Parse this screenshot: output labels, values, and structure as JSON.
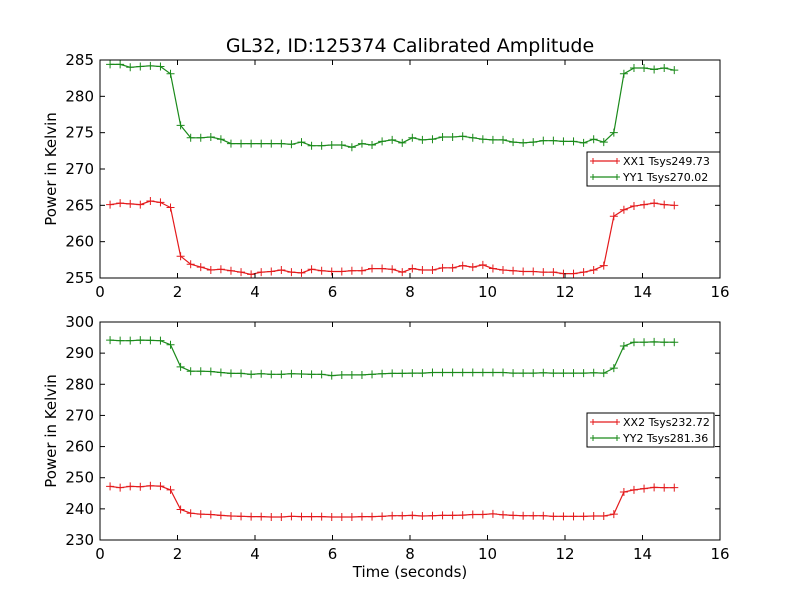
{
  "title": "GL32, ID:125374 Calibrated Amplitude",
  "colors": {
    "red": "#e41a1c",
    "green": "#1a8a1a",
    "axis": "#000000"
  },
  "chart_data": [
    {
      "type": "line",
      "title": "GL32, ID:125374 Calibrated Amplitude",
      "xlabel": "",
      "ylabel": "Power in Kelvin",
      "xlim": [
        0,
        16
      ],
      "ylim": [
        255,
        285
      ],
      "xticks": [
        0,
        2,
        4,
        6,
        8,
        10,
        12,
        14,
        16
      ],
      "yticks": [
        255,
        260,
        265,
        270,
        275,
        280,
        285
      ],
      "grid": false,
      "legend": "center-right",
      "x": [
        0.26,
        0.52,
        0.78,
        1.04,
        1.3,
        1.56,
        1.82,
        2.08,
        2.34,
        2.6,
        2.86,
        3.12,
        3.38,
        3.64,
        3.9,
        4.16,
        4.42,
        4.68,
        4.94,
        5.2,
        5.46,
        5.72,
        5.98,
        6.24,
        6.5,
        6.76,
        7.02,
        7.28,
        7.54,
        7.8,
        8.06,
        8.32,
        8.58,
        8.84,
        9.1,
        9.36,
        9.62,
        9.88,
        10.14,
        10.4,
        10.66,
        10.92,
        11.18,
        11.44,
        11.7,
        11.96,
        12.22,
        12.48,
        12.74,
        13.0,
        13.26,
        13.52,
        13.78,
        14.04,
        14.3,
        14.56,
        14.82
      ],
      "series": [
        {
          "name": "XX1 Tsys249.73",
          "color": "#e41a1c",
          "values": [
            265.1,
            265.3,
            265.2,
            265.1,
            265.6,
            265.4,
            264.7,
            258.0,
            256.9,
            256.5,
            256.1,
            256.2,
            256.0,
            255.8,
            255.5,
            255.8,
            255.9,
            256.1,
            255.8,
            255.7,
            256.2,
            256.0,
            255.9,
            255.9,
            256.0,
            256.0,
            256.3,
            256.3,
            256.2,
            255.8,
            256.3,
            256.1,
            256.1,
            256.4,
            256.4,
            256.7,
            256.5,
            256.8,
            256.3,
            256.1,
            256.0,
            255.9,
            255.9,
            255.8,
            255.8,
            255.6,
            255.6,
            255.8,
            256.1,
            256.7,
            263.5,
            264.4,
            264.9,
            265.1,
            265.3,
            265.1,
            265.0
          ]
        },
        {
          "name": "YY1 Tsys270.02",
          "color": "#1a8a1a",
          "values": [
            284.4,
            284.4,
            284.0,
            284.1,
            284.2,
            284.1,
            283.1,
            276.0,
            274.3,
            274.3,
            274.4,
            274.1,
            273.5,
            273.5,
            273.5,
            273.5,
            273.5,
            273.5,
            273.4,
            273.7,
            273.2,
            273.2,
            273.3,
            273.3,
            273.0,
            273.5,
            273.3,
            273.8,
            274.0,
            273.6,
            274.3,
            274.0,
            274.1,
            274.4,
            274.4,
            274.5,
            274.3,
            274.1,
            274.0,
            274.0,
            273.7,
            273.6,
            273.7,
            273.9,
            273.9,
            273.8,
            273.8,
            273.6,
            274.1,
            273.7,
            275.0,
            283.1,
            283.9,
            283.9,
            283.7,
            283.9,
            283.6
          ]
        }
      ]
    },
    {
      "type": "line",
      "title": "",
      "xlabel": "Time (seconds)",
      "ylabel": "Power in Kelvin",
      "xlim": [
        0,
        16
      ],
      "ylim": [
        230,
        300
      ],
      "xticks": [
        0,
        2,
        4,
        6,
        8,
        10,
        12,
        14,
        16
      ],
      "yticks": [
        230,
        240,
        250,
        260,
        270,
        280,
        290,
        300
      ],
      "grid": false,
      "legend": "center-right",
      "x": [
        0.26,
        0.52,
        0.78,
        1.04,
        1.3,
        1.56,
        1.82,
        2.08,
        2.34,
        2.6,
        2.86,
        3.12,
        3.38,
        3.64,
        3.9,
        4.16,
        4.42,
        4.68,
        4.94,
        5.2,
        5.46,
        5.72,
        5.98,
        6.24,
        6.5,
        6.76,
        7.02,
        7.28,
        7.54,
        7.8,
        8.06,
        8.32,
        8.58,
        8.84,
        9.1,
        9.36,
        9.62,
        9.88,
        10.14,
        10.4,
        10.66,
        10.92,
        11.18,
        11.44,
        11.7,
        11.96,
        12.22,
        12.48,
        12.74,
        13.0,
        13.26,
        13.52,
        13.78,
        14.04,
        14.3,
        14.56,
        14.82
      ],
      "series": [
        {
          "name": "XX2 Tsys232.72",
          "color": "#e41a1c",
          "values": [
            247.2,
            246.8,
            247.2,
            247.1,
            247.4,
            247.3,
            246.1,
            239.8,
            238.6,
            238.3,
            238.2,
            237.9,
            237.7,
            237.6,
            237.5,
            237.5,
            237.4,
            237.4,
            237.6,
            237.5,
            237.5,
            237.5,
            237.4,
            237.4,
            237.4,
            237.5,
            237.5,
            237.6,
            237.8,
            237.8,
            237.9,
            237.7,
            237.8,
            237.9,
            237.9,
            238.0,
            238.2,
            238.2,
            238.4,
            238.1,
            237.9,
            237.8,
            237.8,
            237.8,
            237.6,
            237.6,
            237.6,
            237.6,
            237.7,
            237.7,
            238.3,
            245.4,
            246.1,
            246.5,
            246.9,
            246.8,
            246.8
          ]
        },
        {
          "name": "YY2 Tsys281.36",
          "color": "#1a8a1a",
          "values": [
            294.2,
            294.0,
            294.0,
            294.2,
            294.1,
            294.0,
            292.7,
            285.6,
            284.2,
            284.2,
            284.1,
            283.8,
            283.5,
            283.5,
            283.2,
            283.4,
            283.2,
            283.2,
            283.4,
            283.3,
            283.2,
            283.2,
            282.8,
            283.0,
            283.0,
            283.0,
            283.2,
            283.4,
            283.5,
            283.5,
            283.6,
            283.6,
            283.8,
            283.8,
            283.8,
            283.8,
            283.8,
            283.8,
            283.8,
            283.8,
            283.6,
            283.6,
            283.6,
            283.7,
            283.6,
            283.6,
            283.6,
            283.6,
            283.7,
            283.6,
            285.2,
            292.3,
            293.5,
            293.5,
            293.6,
            293.5,
            293.5
          ]
        }
      ]
    }
  ]
}
